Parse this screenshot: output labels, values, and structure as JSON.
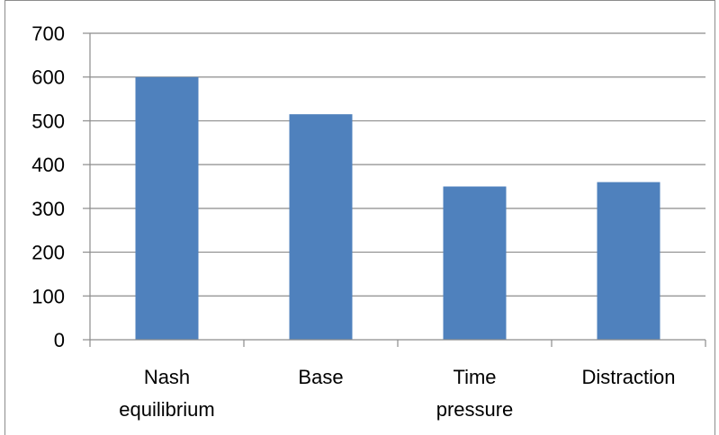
{
  "chart_data": {
    "type": "bar",
    "categories": [
      [
        "Nash",
        "equilibrium"
      ],
      [
        "Base"
      ],
      [
        "Time",
        "pressure"
      ],
      [
        "Distraction"
      ]
    ],
    "values": [
      600,
      515,
      350,
      360
    ],
    "ylim": [
      0,
      700
    ],
    "yticks": [
      0,
      100,
      200,
      300,
      400,
      500,
      600,
      700
    ],
    "grid": true,
    "legend": "none",
    "bar_color": "#4f81bd",
    "grid_color": "#8c8c8c"
  }
}
